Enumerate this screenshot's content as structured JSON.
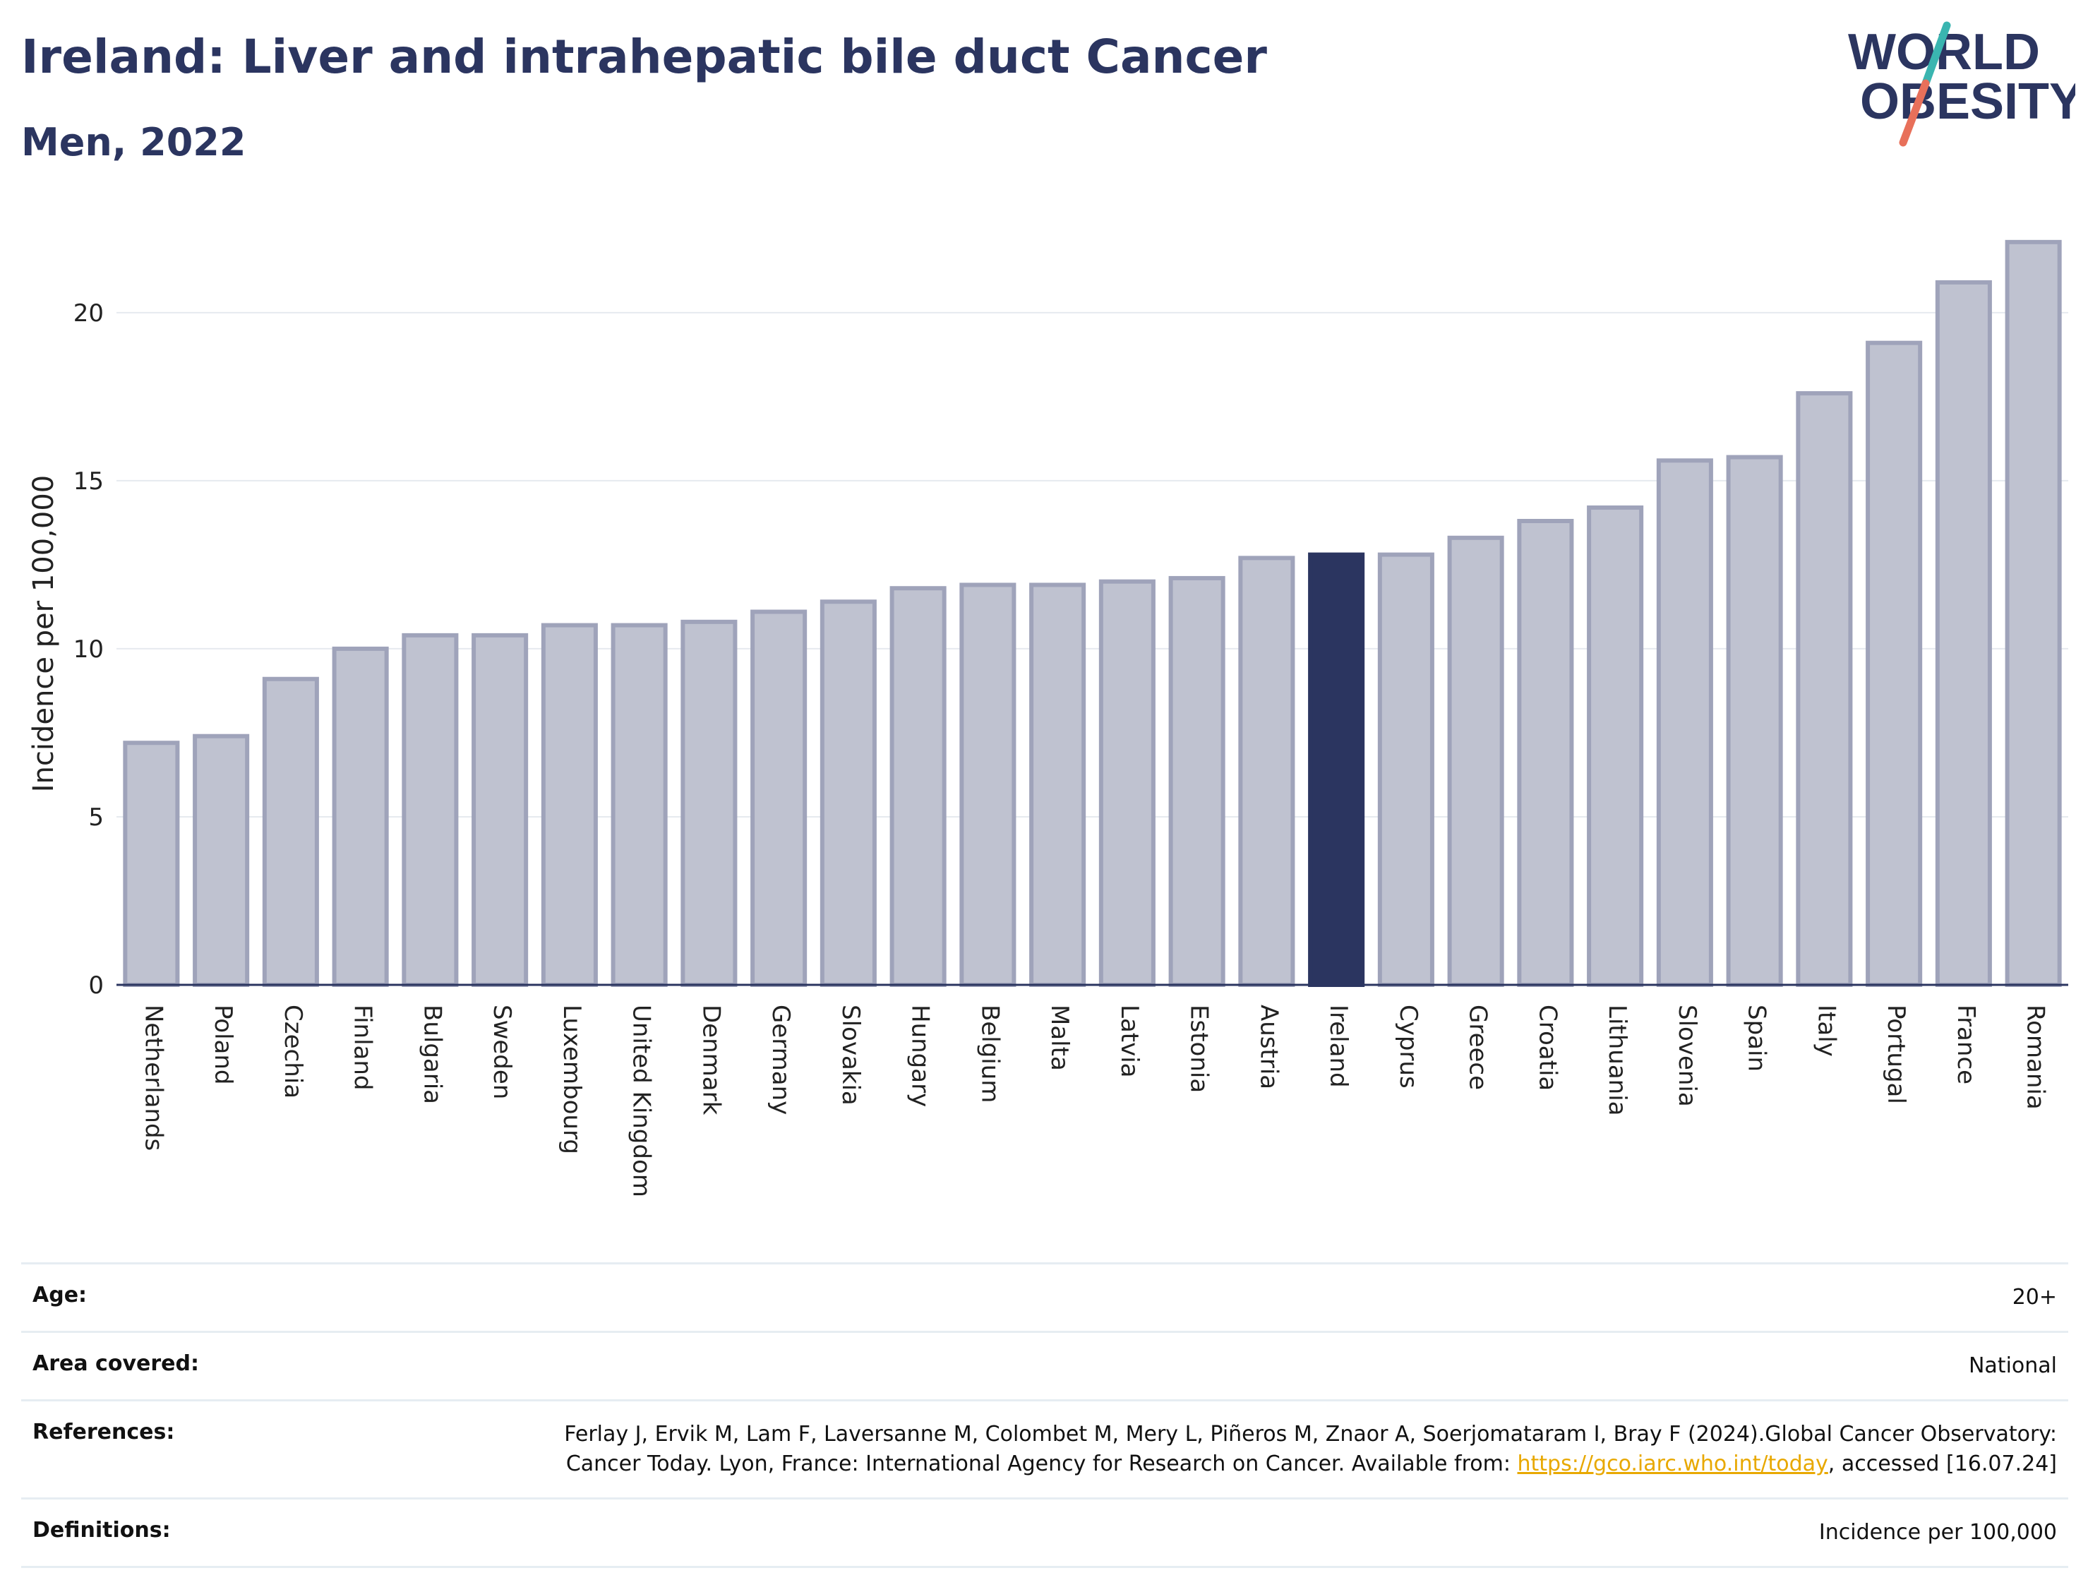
{
  "header": {
    "title": "Ireland: Liver and intrahepatic bile duct Cancer",
    "subtitle": "Men, 2022"
  },
  "logo": {
    "line1": "WORLD",
    "line2": "OBESITY",
    "colors": {
      "text": "#2b3560",
      "slash_teal": "#3ab5b0",
      "slash_coral": "#e8705a"
    }
  },
  "chart_data": {
    "type": "bar",
    "title": "Ireland: Liver and intrahepatic bile duct Cancer",
    "subtitle": "Men, 2022",
    "xlabel": "",
    "ylabel": "Incidence per 100,000",
    "ylim": [
      0,
      23
    ],
    "yticks": [
      0,
      5,
      10,
      15,
      20
    ],
    "grid": true,
    "highlight": "Ireland",
    "colors": {
      "bar": "#bfc2d0",
      "bar_border": "#9fa3ba",
      "highlight": "#2b3560"
    },
    "categories": [
      "Netherlands",
      "Poland",
      "Czechia",
      "Finland",
      "Bulgaria",
      "Sweden",
      "Luxembourg",
      "United Kingdom",
      "Denmark",
      "Germany",
      "Slovakia",
      "Hungary",
      "Belgium",
      "Malta",
      "Latvia",
      "Estonia",
      "Austria",
      "Ireland",
      "Cyprus",
      "Greece",
      "Croatia",
      "Lithuania",
      "Slovenia",
      "Spain",
      "Italy",
      "Portugal",
      "France",
      "Romania"
    ],
    "values": [
      7.2,
      7.4,
      9.1,
      10.0,
      10.4,
      10.4,
      10.7,
      10.7,
      10.8,
      11.1,
      11.4,
      11.8,
      11.9,
      11.9,
      12.0,
      12.1,
      12.7,
      12.8,
      12.8,
      13.3,
      13.8,
      14.2,
      15.6,
      15.7,
      17.6,
      19.1,
      20.9,
      22.1
    ]
  },
  "info": {
    "age_label": "Age:",
    "age_value": "20+",
    "area_label": "Area covered:",
    "area_value": "National",
    "references_label": "References:",
    "references_text1": "Ferlay J, Ervik M, Lam F, Laversanne M, Colombet M, Mery L, Piñeros M, Znaor A, Soerjomataram I, Bray F (2024).Global Cancer Observatory: Cancer Today. Lyon, France: International Agency for Research on Cancer. Available from: ",
    "references_link": "https://gco.iarc.who.int/today",
    "references_text2": ", accessed [16.07.24]",
    "definitions_label": "Definitions:",
    "definitions_value": "Incidence per 100,000"
  }
}
